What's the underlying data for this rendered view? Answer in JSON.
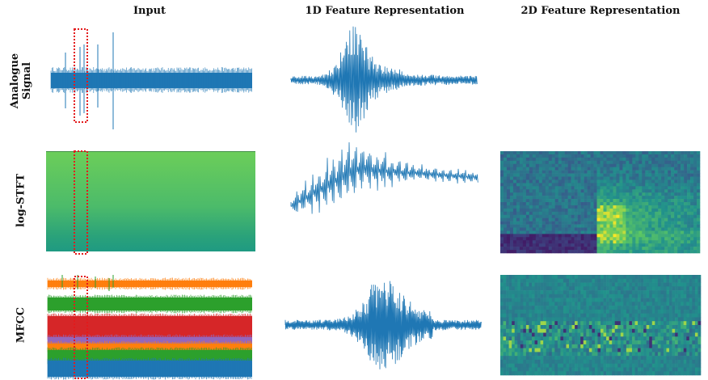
{
  "columns": [
    "Input",
    "1D Feature Representation",
    "2D Feature Representation"
  ],
  "rows": [
    {
      "label_lines": [
        "Analogue",
        "Signal"
      ]
    },
    {
      "label_lines": [
        "log-STFT"
      ]
    },
    {
      "label_lines": [
        "MFCC"
      ]
    }
  ],
  "colors": {
    "signal": "#1f77b4",
    "highlight": "#e31a1c",
    "mfcc_bands": [
      "#ff7f0e",
      "#2ca02c",
      "#d62728",
      "#9467bd",
      "#ff7f0e",
      "#2ca02c",
      "#1f77b4"
    ],
    "viridis": [
      "#440154",
      "#3b528b",
      "#21918c",
      "#5ec962",
      "#fde725"
    ]
  }
}
